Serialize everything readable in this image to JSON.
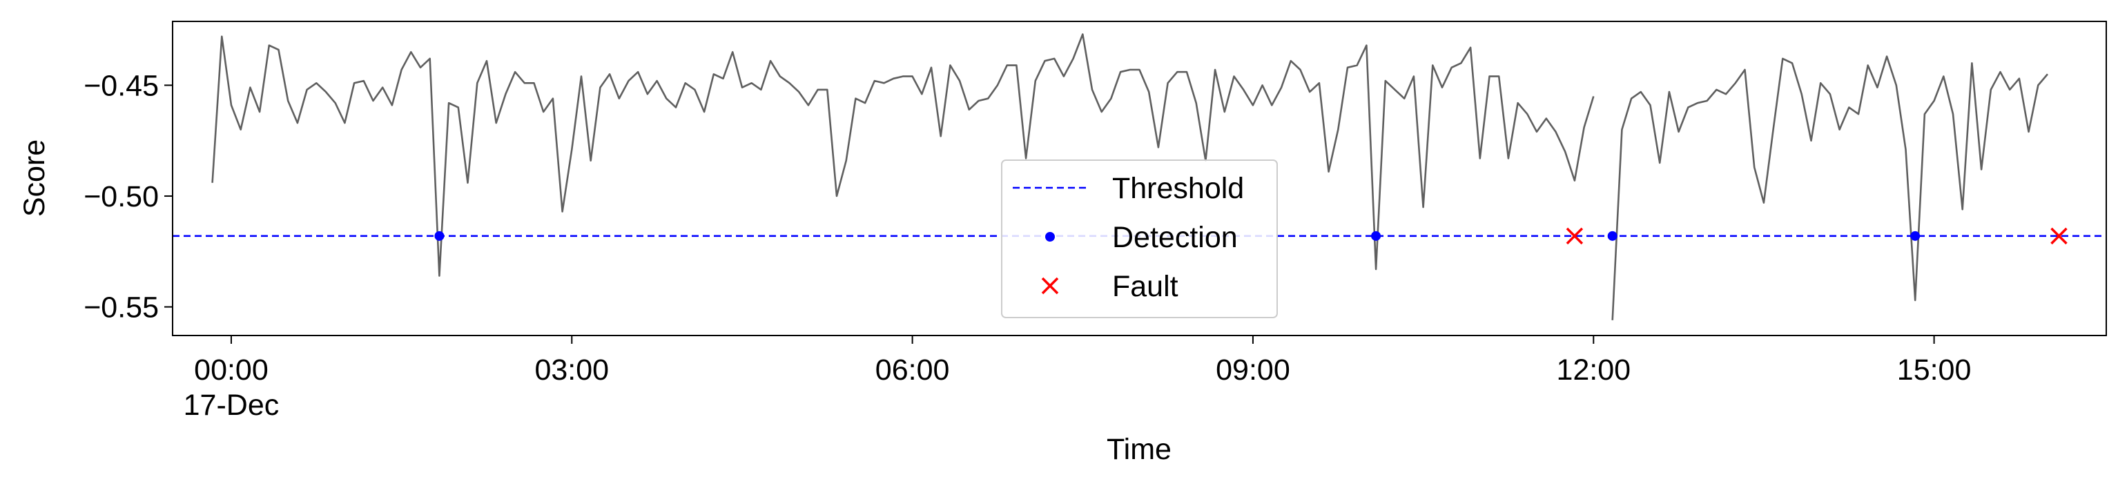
{
  "chart_data": {
    "type": "line",
    "x_label": "Time",
    "y_label": "Score",
    "date_label": "17-Dec",
    "x": [
      -10,
      -5,
      0,
      5,
      10,
      15,
      20,
      25,
      30,
      35,
      40,
      45,
      50,
      55,
      60,
      65,
      70,
      75,
      80,
      85,
      90,
      95,
      100,
      105,
      110,
      115,
      120,
      125,
      130,
      135,
      140,
      145,
      150,
      155,
      160,
      165,
      170,
      175,
      180,
      185,
      190,
      195,
      200,
      205,
      210,
      215,
      220,
      225,
      230,
      235,
      240,
      245,
      250,
      255,
      260,
      265,
      270,
      275,
      280,
      285,
      290,
      295,
      300,
      305,
      310,
      315,
      320,
      325,
      330,
      335,
      340,
      345,
      350,
      355,
      360,
      365,
      370,
      375,
      380,
      385,
      390,
      395,
      400,
      405,
      410,
      415,
      420,
      425,
      430,
      435,
      440,
      445,
      450,
      455,
      460,
      465,
      470,
      475,
      480,
      485,
      490,
      495,
      500,
      505,
      510,
      515,
      520,
      525,
      530,
      535,
      540,
      545,
      550,
      555,
      560,
      565,
      570,
      575,
      580,
      585,
      590,
      595,
      600,
      605,
      610,
      615,
      620,
      625,
      630,
      635,
      640,
      645,
      650,
      655,
      660,
      665,
      670,
      675,
      680,
      685,
      690,
      695,
      700,
      705,
      710,
      715,
      720,
      725,
      730,
      735,
      740,
      745,
      750,
      755,
      760,
      765,
      770,
      775,
      780,
      785,
      790,
      795,
      800,
      805,
      810,
      815,
      820,
      825,
      830,
      835,
      840,
      845,
      850,
      855,
      860,
      865,
      870,
      875,
      880,
      885,
      890,
      895,
      900,
      905,
      910,
      915,
      920,
      925,
      930,
      935,
      940,
      945,
      950,
      955,
      960
    ],
    "series": [
      {
        "color": "#5f5f5f",
        "values": [
          -0.494,
          -0.428,
          -0.459,
          -0.47,
          -0.451,
          -0.462,
          -0.432,
          -0.434,
          -0.457,
          -0.467,
          -0.452,
          -0.449,
          -0.453,
          -0.458,
          -0.467,
          -0.449,
          -0.448,
          -0.457,
          -0.451,
          -0.459,
          -0.443,
          -0.435,
          -0.442,
          -0.438,
          -0.536,
          -0.458,
          -0.46,
          -0.494,
          -0.449,
          -0.439,
          -0.467,
          -0.454,
          -0.444,
          -0.449,
          -0.449,
          -0.462,
          -0.456,
          -0.507,
          -0.479,
          -0.446,
          -0.484,
          -0.451,
          -0.445,
          -0.456,
          -0.448,
          -0.444,
          -0.454,
          -0.448,
          -0.456,
          -0.46,
          -0.449,
          -0.452,
          -0.462,
          -0.445,
          -0.447,
          -0.435,
          -0.451,
          -0.449,
          -0.452,
          -0.439,
          -0.446,
          -0.449,
          -0.453,
          -0.459,
          -0.452,
          -0.452,
          -0.5,
          -0.484,
          -0.456,
          -0.458,
          -0.448,
          -0.449,
          -0.447,
          -0.446,
          -0.446,
          -0.454,
          -0.442,
          -0.473,
          -0.441,
          -0.448,
          -0.461,
          -0.457,
          -0.456,
          -0.45,
          -0.441,
          -0.441,
          -0.483,
          -0.448,
          -0.439,
          -0.438,
          -0.446,
          -0.438,
          -0.427,
          -0.452,
          -0.462,
          -0.456,
          -0.444,
          -0.443,
          -0.443,
          -0.453,
          -0.478,
          -0.449,
          -0.444,
          -0.444,
          -0.458,
          -0.484,
          -0.443,
          -0.462,
          -0.446,
          -0.452,
          -0.459,
          -0.45,
          -0.459,
          -0.451,
          -0.439,
          -0.443,
          -0.453,
          -0.449,
          -0.489,
          -0.47,
          -0.442,
          -0.441,
          -0.432,
          -0.533,
          -0.448,
          -0.452,
          -0.456,
          -0.446,
          -0.505,
          -0.441,
          -0.451,
          -0.442,
          -0.44,
          -0.433,
          -0.483,
          -0.446,
          -0.446,
          -0.483,
          -0.458,
          -0.463,
          -0.471,
          -0.465,
          -0.471,
          -0.48,
          -0.493,
          -0.469,
          -0.455,
          null,
          -0.556,
          -0.47,
          -0.456,
          -0.453,
          -0.459,
          -0.485,
          -0.453,
          -0.471,
          -0.46,
          -0.458,
          -0.457,
          -0.452,
          -0.454,
          -0.449,
          -0.443,
          -0.487,
          -0.503,
          -0.47,
          -0.438,
          -0.44,
          -0.454,
          -0.475,
          -0.449,
          -0.454,
          -0.47,
          -0.46,
          -0.463,
          -0.441,
          -0.451,
          -0.437,
          -0.45,
          -0.479,
          -0.547,
          -0.463,
          -0.457,
          -0.446,
          -0.463,
          -0.506,
          -0.44,
          -0.488,
          -0.452,
          -0.444,
          -0.452,
          -0.447,
          -0.471,
          -0.45,
          -0.445
        ]
      }
    ],
    "threshold": {
      "name": "Threshold",
      "value": -0.518,
      "color": "#0000ff"
    },
    "markers": [
      {
        "name": "Detection",
        "marker": "dot",
        "color": "#0000ff",
        "x": [
          110,
          605,
          730,
          890
        ],
        "values": [
          -0.518,
          -0.518,
          -0.518,
          -0.518
        ]
      },
      {
        "name": "Fault",
        "marker": "x",
        "color": "#ff0000",
        "x": [
          710,
          966
        ],
        "values": [
          -0.518,
          -0.518
        ]
      }
    ],
    "xlim": [
      -31,
      991
    ],
    "xticks": [
      {
        "value": 0,
        "label": "00:00"
      },
      {
        "value": 180,
        "label": "03:00"
      },
      {
        "value": 360,
        "label": "06:00"
      },
      {
        "value": 540,
        "label": "09:00"
      },
      {
        "value": 720,
        "label": "12:00"
      },
      {
        "value": 900,
        "label": "15:00"
      }
    ],
    "ylim": [
      -0.5629,
      -0.4212
    ],
    "yticks": [
      {
        "value": -0.55,
        "label": "−0.55"
      },
      {
        "value": -0.5,
        "label": "−0.50"
      },
      {
        "value": -0.45,
        "label": "−0.45"
      }
    ],
    "legend": "lower center"
  }
}
